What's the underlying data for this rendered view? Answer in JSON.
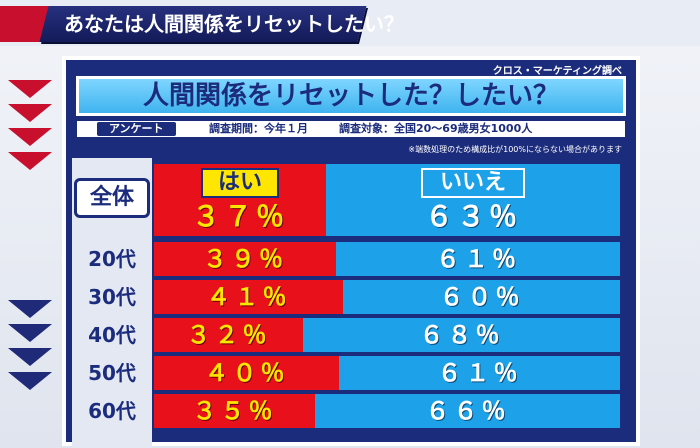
{
  "banner": {
    "headline": "あなたは人間関係をリセットしたい？"
  },
  "panel": {
    "source": "クロス・マーケティング調べ",
    "title": "人間関係をリセットした？したい？",
    "survey_tag": "アンケート",
    "survey_period": "調査期間：今年１月",
    "survey_target": "調査対象：全国20～69歳男女1000人",
    "note": "※端数処理のため構成比が100%にならない場合があります"
  },
  "colors": {
    "yes": "#e8111b",
    "no": "#1da2ea",
    "panel": "#1c2c7c",
    "yes_text": "#ffe600"
  },
  "chart_data": {
    "type": "bar",
    "orientation": "horizontal",
    "stacked": true,
    "title": "人間関係をリセットした？したい？",
    "categories": [
      "全体",
      "20代",
      "30代",
      "40代",
      "50代",
      "60代"
    ],
    "series": [
      {
        "name": "はい",
        "values": [
          37,
          39,
          41,
          32,
          40,
          35
        ],
        "labels": [
          "３７％",
          "３９％",
          "４１％",
          "３２％",
          "４０％",
          "３５％"
        ]
      },
      {
        "name": "いいえ",
        "values": [
          63,
          61,
          60,
          68,
          61,
          66
        ],
        "labels": [
          "６３％",
          "６１％",
          "６０％",
          "６８％",
          "６１％",
          "６６％"
        ]
      }
    ],
    "xlim": [
      0,
      100
    ],
    "legend": "inside-top-bar",
    "grid": false
  }
}
